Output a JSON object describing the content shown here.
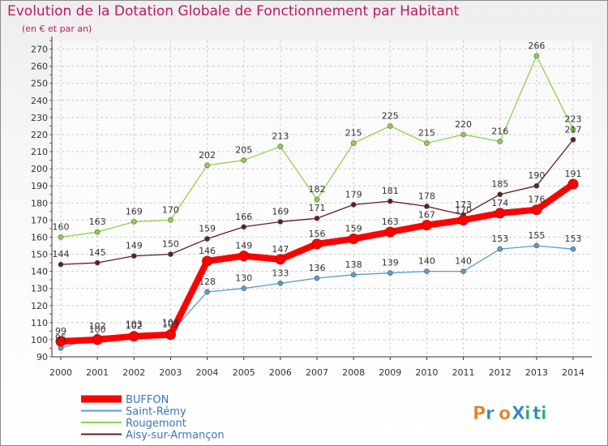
{
  "title": "Evolution de la Dotation Globale de Fonctionnement par Habitant",
  "subtitle": "(en € et par an)",
  "logo": {
    "text": "ProXiti",
    "colors": [
      "#e67e22",
      "#2e86c1",
      "#27ae60",
      "#8e44ad"
    ]
  },
  "chart_data": {
    "type": "line",
    "title": "Evolution de la Dotation Globale de Fonctionnement par Habitant",
    "subtitle": "(en € et par an)",
    "xlabel": "",
    "ylabel": "",
    "ylim": [
      90,
      275
    ],
    "yticks": [
      90,
      100,
      110,
      120,
      130,
      140,
      150,
      160,
      170,
      180,
      190,
      200,
      210,
      220,
      230,
      240,
      250,
      260,
      270
    ],
    "x": [
      "2000",
      "2001",
      "2002",
      "2003",
      "2004",
      "2005",
      "2006",
      "2007",
      "2008",
      "2009",
      "2010",
      "2011",
      "2012",
      "2013",
      "2014"
    ],
    "series": [
      {
        "name": "Aisy-sur-Armançon",
        "color": "#6b1a1f",
        "values": [
          144,
          145,
          149,
          150,
          159,
          166,
          169,
          171,
          179,
          181,
          178,
          173,
          185,
          190,
          217
        ]
      },
      {
        "name": "Rougemont",
        "color": "#8fd14f",
        "values": [
          160,
          163,
          169,
          170,
          202,
          205,
          213,
          182,
          215,
          225,
          215,
          220,
          216,
          266,
          223
        ]
      },
      {
        "name": "Saint-Rémy",
        "color": "#5b9bd5",
        "values": [
          95,
          102,
          103,
          104,
          128,
          130,
          133,
          136,
          138,
          139,
          140,
          140,
          153,
          155,
          153
        ]
      },
      {
        "name": "BUFFON",
        "color": "#ff0000",
        "values": [
          99,
          100,
          102,
          103,
          146,
          149,
          147,
          156,
          159,
          163,
          167,
          170,
          174,
          176,
          191
        ]
      }
    ],
    "legend": [
      "BUFFON",
      "Saint-Rémy",
      "Rougemont",
      "Aisy-sur-Armançon"
    ],
    "legend_position": "bottom-left"
  }
}
